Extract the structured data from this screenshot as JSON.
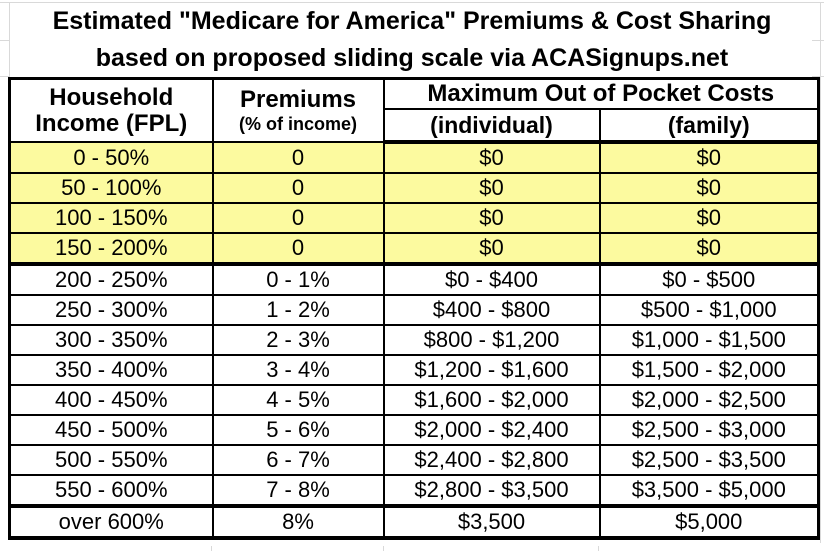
{
  "chart_data": {
    "type": "table",
    "title": "Estimated \"Medicare for America\" Premiums & Cost Sharing",
    "subtitle": "based on proposed sliding scale via ACASignups.net",
    "header": {
      "income_line1": "Household",
      "income_line2": "Income (FPL)",
      "premiums_line1": "Premiums",
      "premiums_line2": "(% of income)",
      "moop_group": "Maximum Out of Pocket Costs",
      "moop_individual": "(individual)",
      "moop_family": "(family)"
    },
    "columns": [
      "Household Income (FPL)",
      "Premiums (% of income)",
      "Maximum Out of Pocket Costs (individual)",
      "Maximum Out of Pocket Costs (family)"
    ],
    "rows": [
      {
        "income": "0 - 50%",
        "premiums": "0",
        "moop_individual": "$0",
        "moop_family": "$0",
        "highlighted": true,
        "section_start": false
      },
      {
        "income": "50 - 100%",
        "premiums": "0",
        "moop_individual": "$0",
        "moop_family": "$0",
        "highlighted": true,
        "section_start": false
      },
      {
        "income": "100 - 150%",
        "premiums": "0",
        "moop_individual": "$0",
        "moop_family": "$0",
        "highlighted": true,
        "section_start": false
      },
      {
        "income": "150 - 200%",
        "premiums": "0",
        "moop_individual": "$0",
        "moop_family": "$0",
        "highlighted": true,
        "section_start": false
      },
      {
        "income": "200 - 250%",
        "premiums": "0 - 1%",
        "moop_individual": "$0 - $400",
        "moop_family": "$0 - $500",
        "highlighted": false,
        "section_start": true
      },
      {
        "income": "250 - 300%",
        "premiums": "1 - 2%",
        "moop_individual": "$400 - $800",
        "moop_family": "$500 - $1,000",
        "highlighted": false,
        "section_start": false
      },
      {
        "income": "300 - 350%",
        "premiums": "2 - 3%",
        "moop_individual": "$800 - $1,200",
        "moop_family": "$1,000 - $1,500",
        "highlighted": false,
        "section_start": false
      },
      {
        "income": "350 - 400%",
        "premiums": "3 - 4%",
        "moop_individual": "$1,200 - $1,600",
        "moop_family": "$1,500 - $2,000",
        "highlighted": false,
        "section_start": false
      },
      {
        "income": "400 - 450%",
        "premiums": "4 - 5%",
        "moop_individual": "$1,600 - $2,000",
        "moop_family": "$2,000 - $2,500",
        "highlighted": false,
        "section_start": false
      },
      {
        "income": "450 - 500%",
        "premiums": "5 - 6%",
        "moop_individual": "$2,000 - $2,400",
        "moop_family": "$2,500 - $3,000",
        "highlighted": false,
        "section_start": false
      },
      {
        "income": "500 - 550%",
        "premiums": "6 - 7%",
        "moop_individual": "$2,400 - $2,800",
        "moop_family": "$2,500 - $3,500",
        "highlighted": false,
        "section_start": false
      },
      {
        "income": "550 - 600%",
        "premiums": "7 - 8%",
        "moop_individual": "$2,800 - $3,500",
        "moop_family": "$3,500 - $5,000",
        "highlighted": false,
        "section_start": false
      },
      {
        "income": "over 600%",
        "premiums": "8%",
        "moop_individual": "$3,500",
        "moop_family": "$5,000",
        "highlighted": false,
        "section_start": true
      }
    ]
  },
  "colors": {
    "row_highlight": "#fcfa9f",
    "border": "#000000",
    "gridline": "#d9d9d9",
    "text": "#000000",
    "background": "#ffffff"
  }
}
